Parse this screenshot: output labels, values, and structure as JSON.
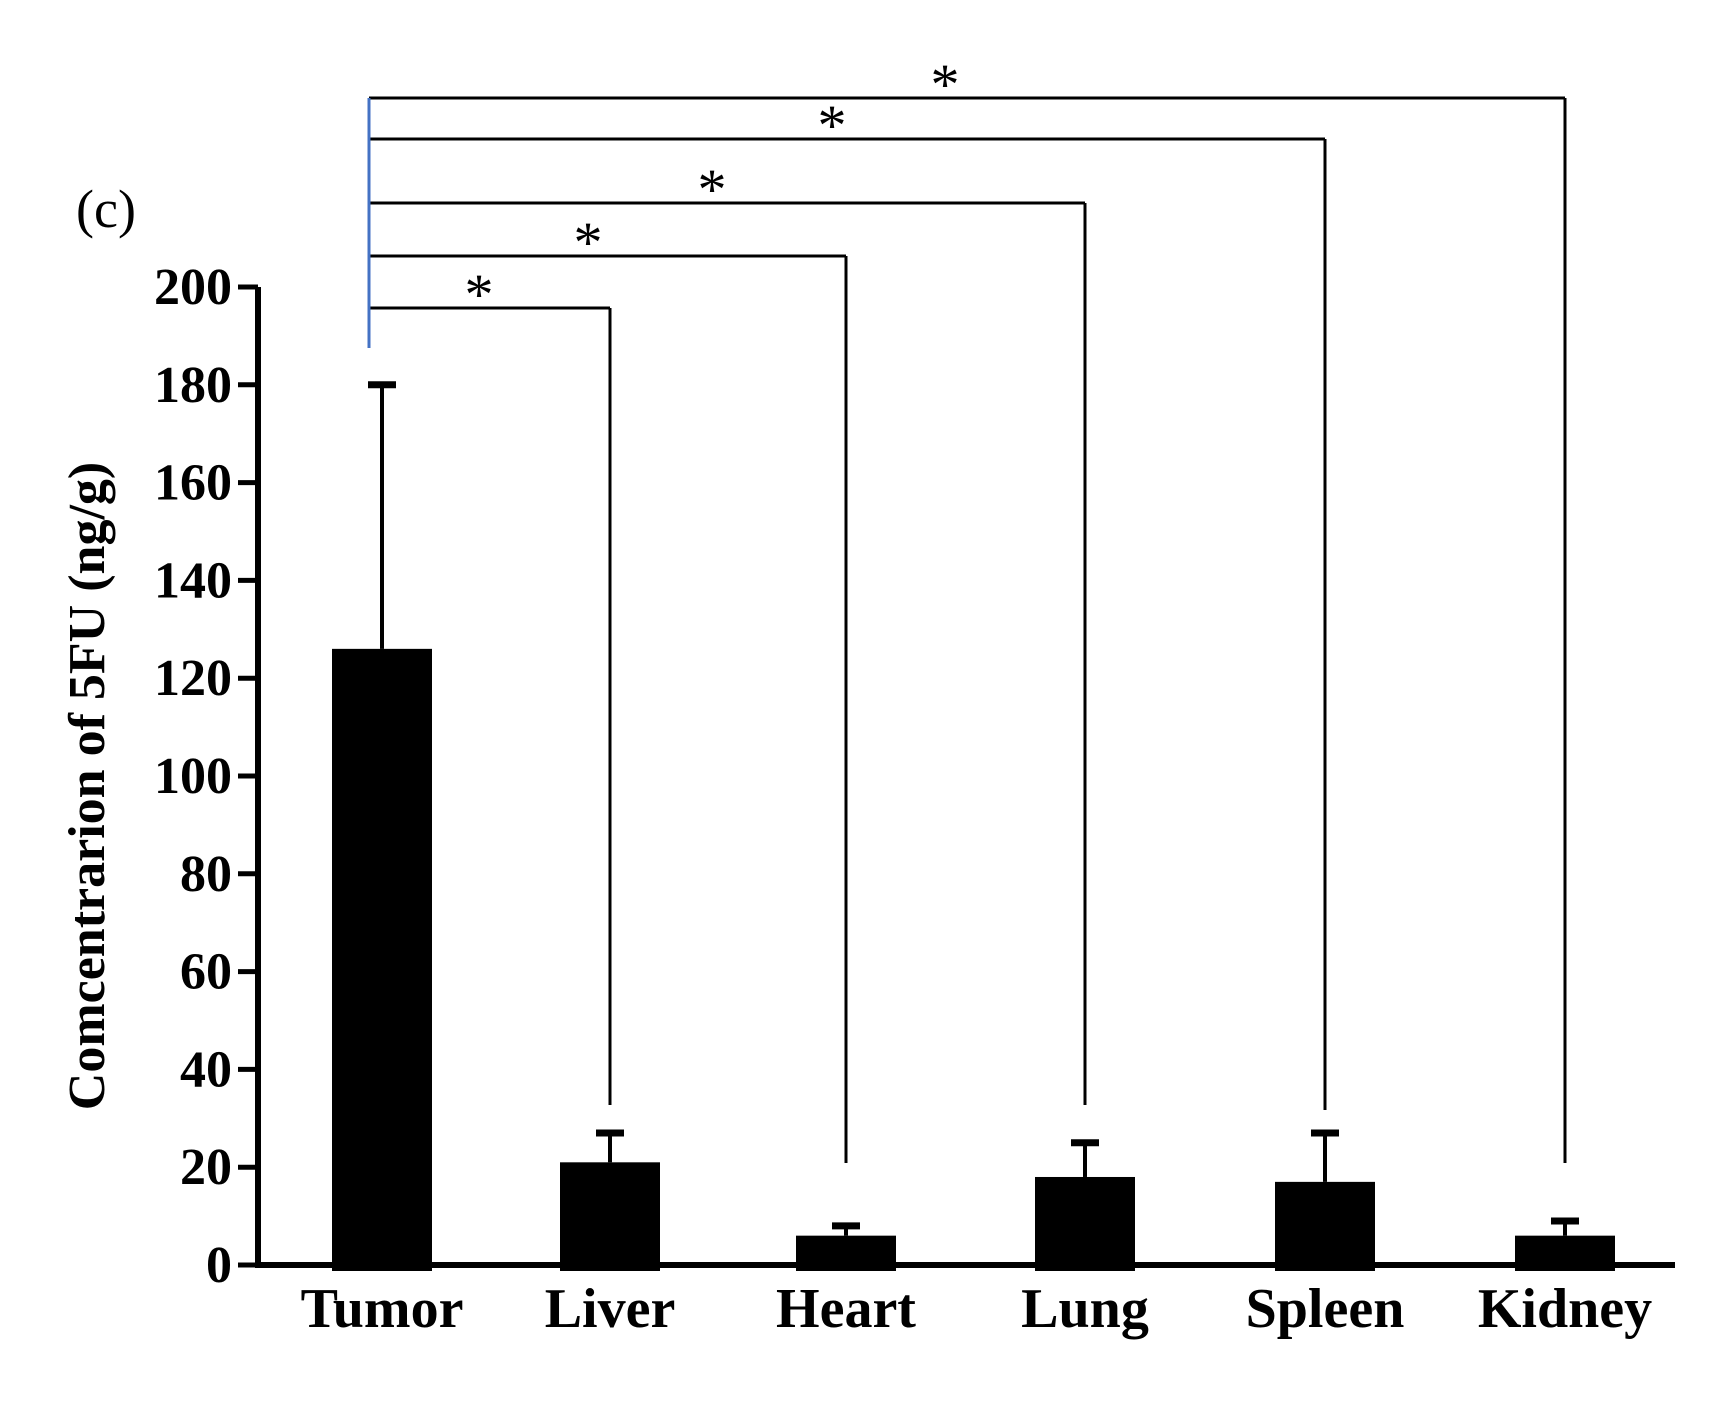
{
  "panel_label": "(c)",
  "chart_data": {
    "type": "bar",
    "categories": [
      "Tumor",
      "Liver",
      "Heart",
      "Lung",
      "Spleen",
      "Kidney"
    ],
    "values": [
      126,
      21,
      6,
      18,
      17,
      6
    ],
    "error_upper": [
      180,
      27,
      8,
      25,
      27,
      9
    ],
    "ylabel": "Comcentrarion of 5FU (ng/g)",
    "xlabel": "",
    "ylim": [
      0,
      200
    ],
    "yticks": [
      0,
      20,
      40,
      60,
      80,
      100,
      120,
      140,
      160,
      180,
      200
    ],
    "bar_color": "#000000",
    "bracket_color": "#000000",
    "bracket_stem_color": "#4472c4",
    "significance": [
      {
        "from": "Tumor",
        "to": "Liver",
        "label": "*"
      },
      {
        "from": "Tumor",
        "to": "Heart",
        "label": "*"
      },
      {
        "from": "Tumor",
        "to": "Lung",
        "label": "*"
      },
      {
        "from": "Tumor",
        "to": "Spleen",
        "label": "*"
      },
      {
        "from": "Tumor",
        "to": "Kidney",
        "label": "*"
      }
    ]
  }
}
